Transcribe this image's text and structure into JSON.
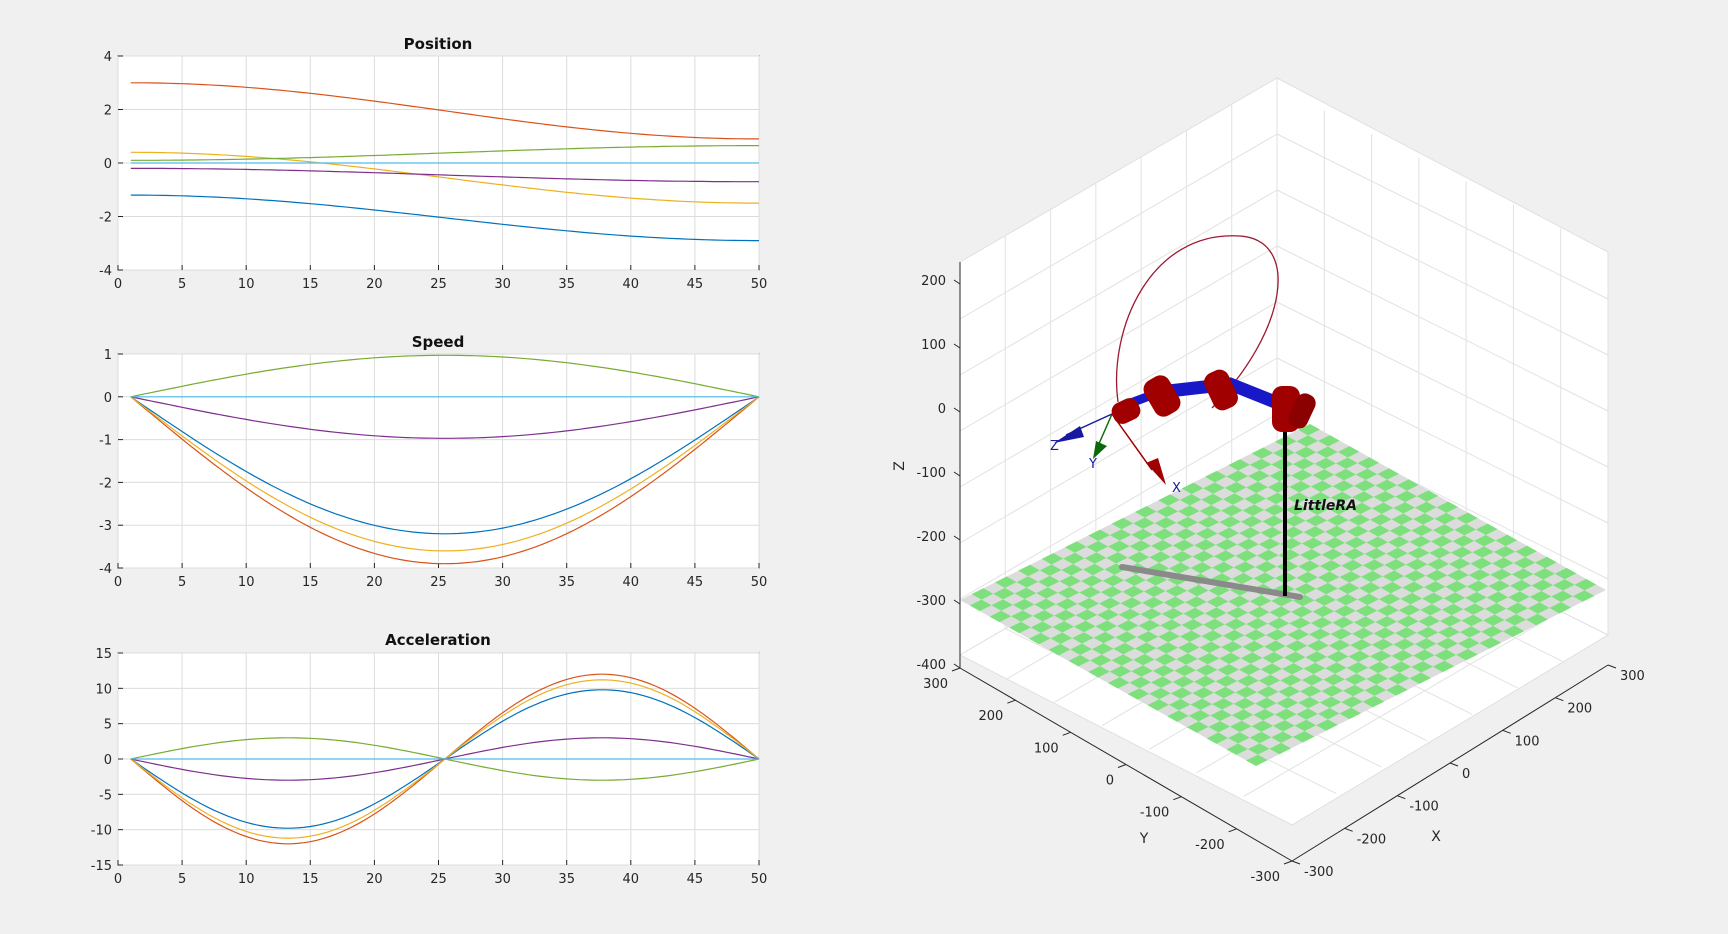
{
  "chart_data": [
    {
      "type": "line",
      "title": "Position",
      "xlim": [
        0,
        50
      ],
      "ylim": [
        -4,
        4
      ],
      "xticks": [
        0,
        5,
        10,
        15,
        20,
        25,
        30,
        35,
        40,
        45,
        50
      ],
      "yticks": [
        -4,
        -2,
        0,
        2,
        4
      ],
      "grid": true,
      "series": [
        {
          "start": -1.2,
          "end": -2.9,
          "color": "#0072BD"
        },
        {
          "start": 3.0,
          "end": 0.9,
          "color": "#D95319"
        },
        {
          "start": 0.4,
          "end": -1.5,
          "color": "#EDB120"
        },
        {
          "start": -0.2,
          "end": -0.7,
          "color": "#7E2F8E"
        },
        {
          "start": 0.1,
          "end": 0.65,
          "color": "#77AC30"
        },
        {
          "start": 0.0,
          "end": 0.0,
          "color": "#4DBEEE"
        }
      ]
    },
    {
      "type": "line",
      "title": "Speed",
      "xlim": [
        0,
        50
      ],
      "ylim": [
        -4,
        1
      ],
      "xticks": [
        0,
        5,
        10,
        15,
        20,
        25,
        30,
        35,
        40,
        45,
        50
      ],
      "yticks": [
        -4,
        -3,
        -2,
        -1,
        0,
        1
      ],
      "grid": true,
      "series": [
        {
          "peak": -3.2,
          "color": "#0072BD"
        },
        {
          "peak": -3.9,
          "color": "#D95319"
        },
        {
          "peak": -3.6,
          "color": "#EDB120"
        },
        {
          "peak": -0.97,
          "color": "#7E2F8E"
        },
        {
          "peak": 0.97,
          "color": "#77AC30"
        },
        {
          "peak": 0.0,
          "color": "#4DBEEE"
        }
      ]
    },
    {
      "type": "line",
      "title": "Acceleration",
      "xlim": [
        0,
        50
      ],
      "ylim": [
        -15,
        15
      ],
      "xticks": [
        0,
        5,
        10,
        15,
        20,
        25,
        30,
        35,
        40,
        45,
        50
      ],
      "yticks": [
        -15,
        -10,
        -5,
        0,
        5,
        10,
        15
      ],
      "grid": true,
      "series": [
        {
          "amp": -9.8,
          "color": "#0072BD"
        },
        {
          "amp": -12.0,
          "color": "#D95319"
        },
        {
          "amp": -11.2,
          "color": "#EDB120"
        },
        {
          "amp": -3.0,
          "color": "#7E2F8E"
        },
        {
          "amp": 3.0,
          "color": "#77AC30"
        },
        {
          "amp": 0.0,
          "color": "#4DBEEE"
        }
      ]
    }
  ],
  "scene3d": {
    "robot_name": "LittleRA",
    "zlabel": "Z",
    "ylabel": "Y",
    "xlabel": "X",
    "z_ticks": [
      "200",
      "100",
      "0",
      "-100",
      "-200",
      "-300",
      "-400"
    ],
    "y_ticks": [
      "300",
      "200",
      "100",
      "0",
      "-100",
      "-200",
      "-300"
    ],
    "x_ticks": [
      "-300",
      "-200",
      "-100",
      "0",
      "100",
      "200",
      "300"
    ],
    "frame_labels": {
      "x": "X",
      "y": "Y",
      "z": "Z"
    },
    "colors": {
      "floor_a": "#7de07d",
      "floor_b": "#dcdcdc",
      "link": "#1818c8",
      "joint": "#a00000",
      "trajectory": "#9b1b30"
    }
  }
}
